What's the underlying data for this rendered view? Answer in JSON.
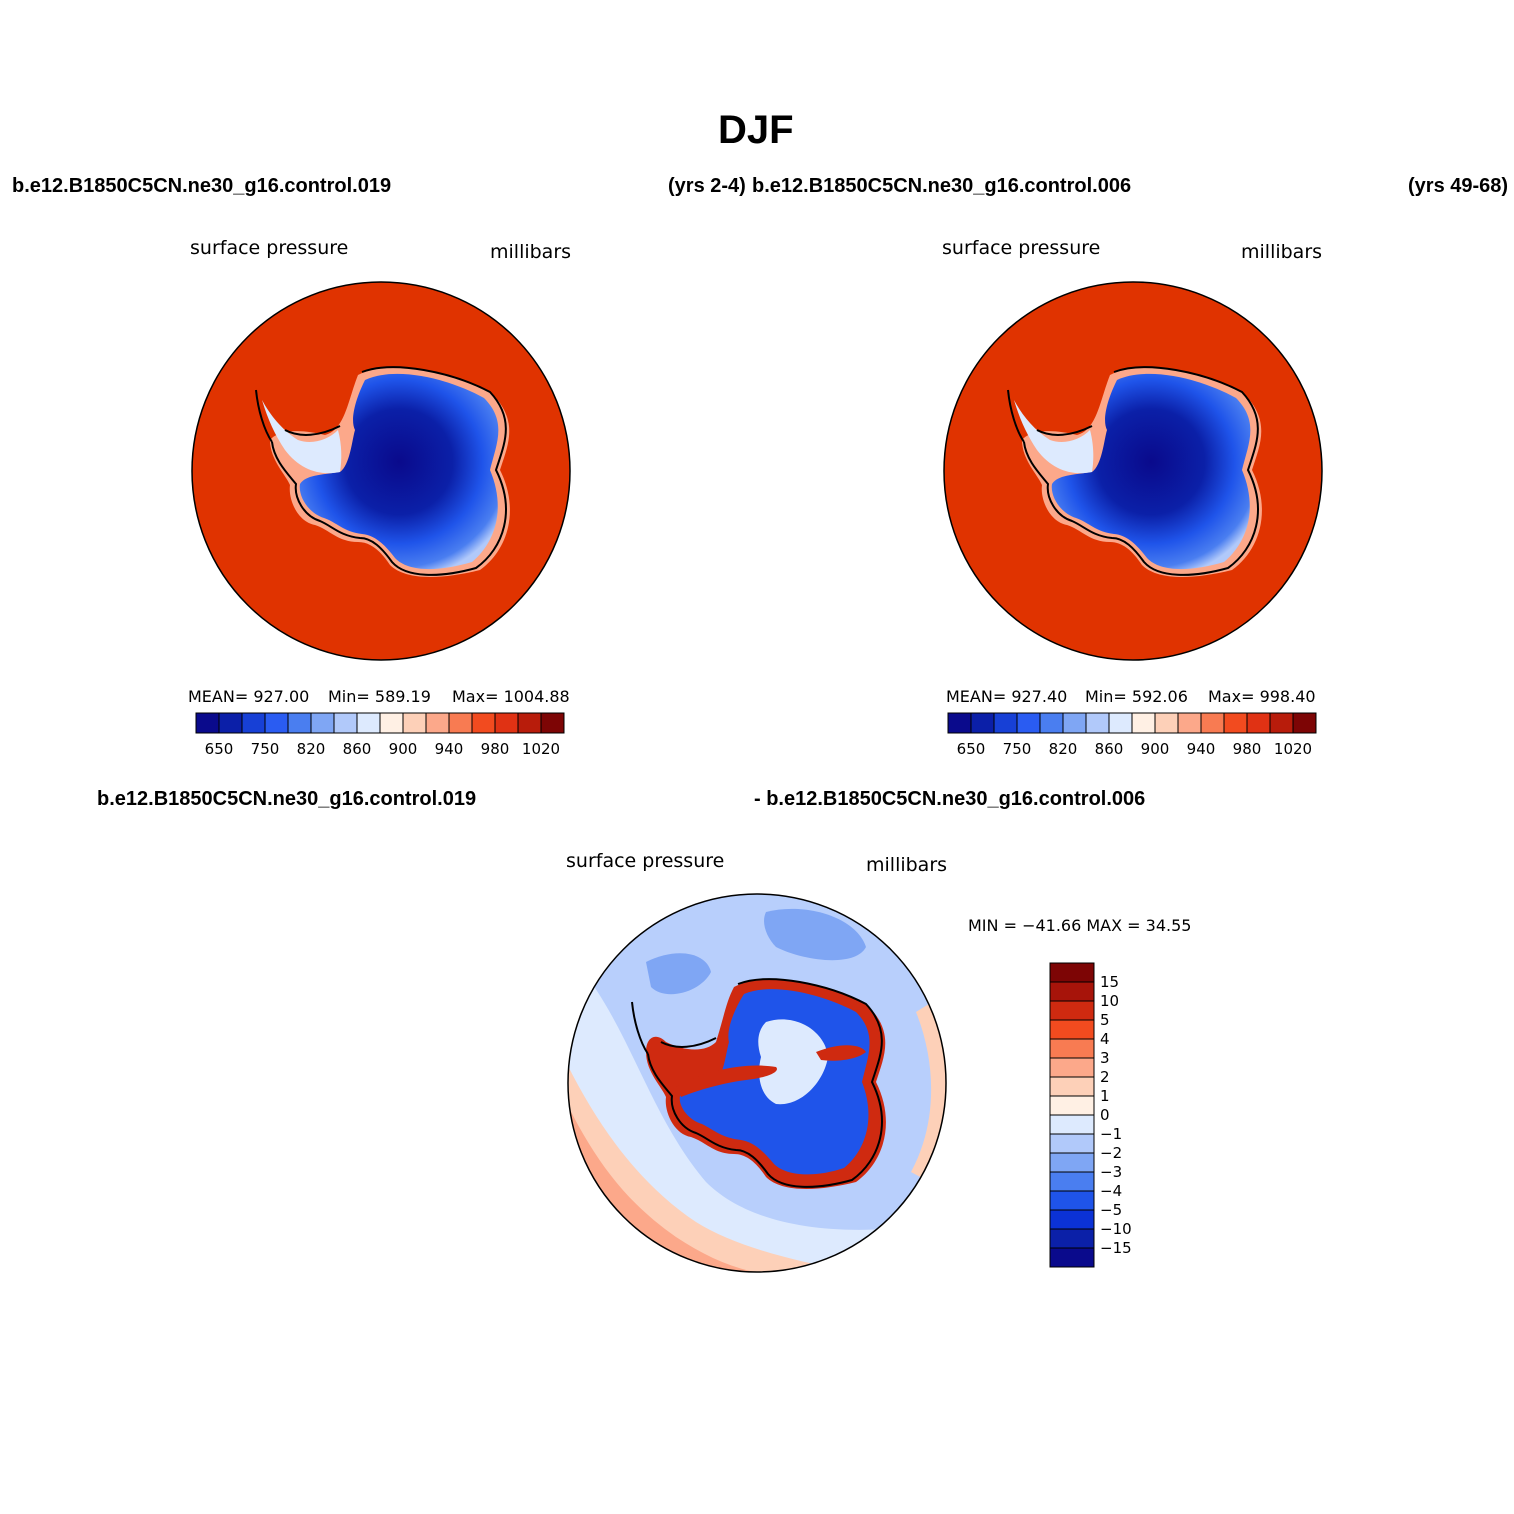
{
  "page": {
    "title": "DJF"
  },
  "top_left": {
    "case": "b.e12.B1850C5CN.ne30_g16.control.019",
    "years": "(yrs 2-4)",
    "variable": "surface pressure",
    "units": "millibars",
    "stats": {
      "mean": "MEAN= 927.00",
      "min": "Min= 589.19",
      "max": "Max= 1004.88"
    }
  },
  "top_right": {
    "case": "b.e12.B1850C5CN.ne30_g16.control.006",
    "years": "(yrs 49-68)",
    "variable": "surface pressure",
    "units": "millibars",
    "stats": {
      "mean": "MEAN= 927.40",
      "min": "Min= 592.06",
      "max": "Max= 998.40"
    }
  },
  "bottom": {
    "case_a": "b.e12.B1850C5CN.ne30_g16.control.019",
    "case_b": "- b.e12.B1850C5CN.ne30_g16.control.006",
    "variable": "surface pressure",
    "units": "millibars",
    "minmax": "MIN = −41.66 MAX =   34.55"
  },
  "abs_colorbar": {
    "colors": [
      "#0a0a8c",
      "#0b1fa8",
      "#1740d6",
      "#2a5cf2",
      "#4a7ef0",
      "#7fa6f4",
      "#b1c9fa",
      "#ddeafe",
      "#fff0e4",
      "#fdd0b8",
      "#fca88a",
      "#f87b52",
      "#f24b1f",
      "#e03214",
      "#b81c0b",
      "#7d0505"
    ],
    "labels": [
      "650",
      "750",
      "820",
      "860",
      "900",
      "940",
      "980",
      "1020"
    ]
  },
  "diff_colorbar": {
    "colors": [
      "#7d0505",
      "#a7140a",
      "#cf2a10",
      "#f24b1f",
      "#f87b52",
      "#fca88a",
      "#fdd0b8",
      "#fff0e4",
      "#ddeafe",
      "#b1c9fa",
      "#7fa6f4",
      "#4a7ef0",
      "#1f54ea",
      "#0b32d6",
      "#0b20a8",
      "#0a0a8c"
    ],
    "labels": [
      "15",
      "10",
      "5",
      "4",
      "3",
      "2",
      "1",
      "0",
      "−1",
      "−2",
      "−3",
      "−4",
      "−5",
      "−10",
      "−15"
    ]
  },
  "map_colors": {
    "ocean": "#e03300",
    "ocean_edge": "#b81c0b",
    "diff_ocean": "#b8cffc"
  }
}
